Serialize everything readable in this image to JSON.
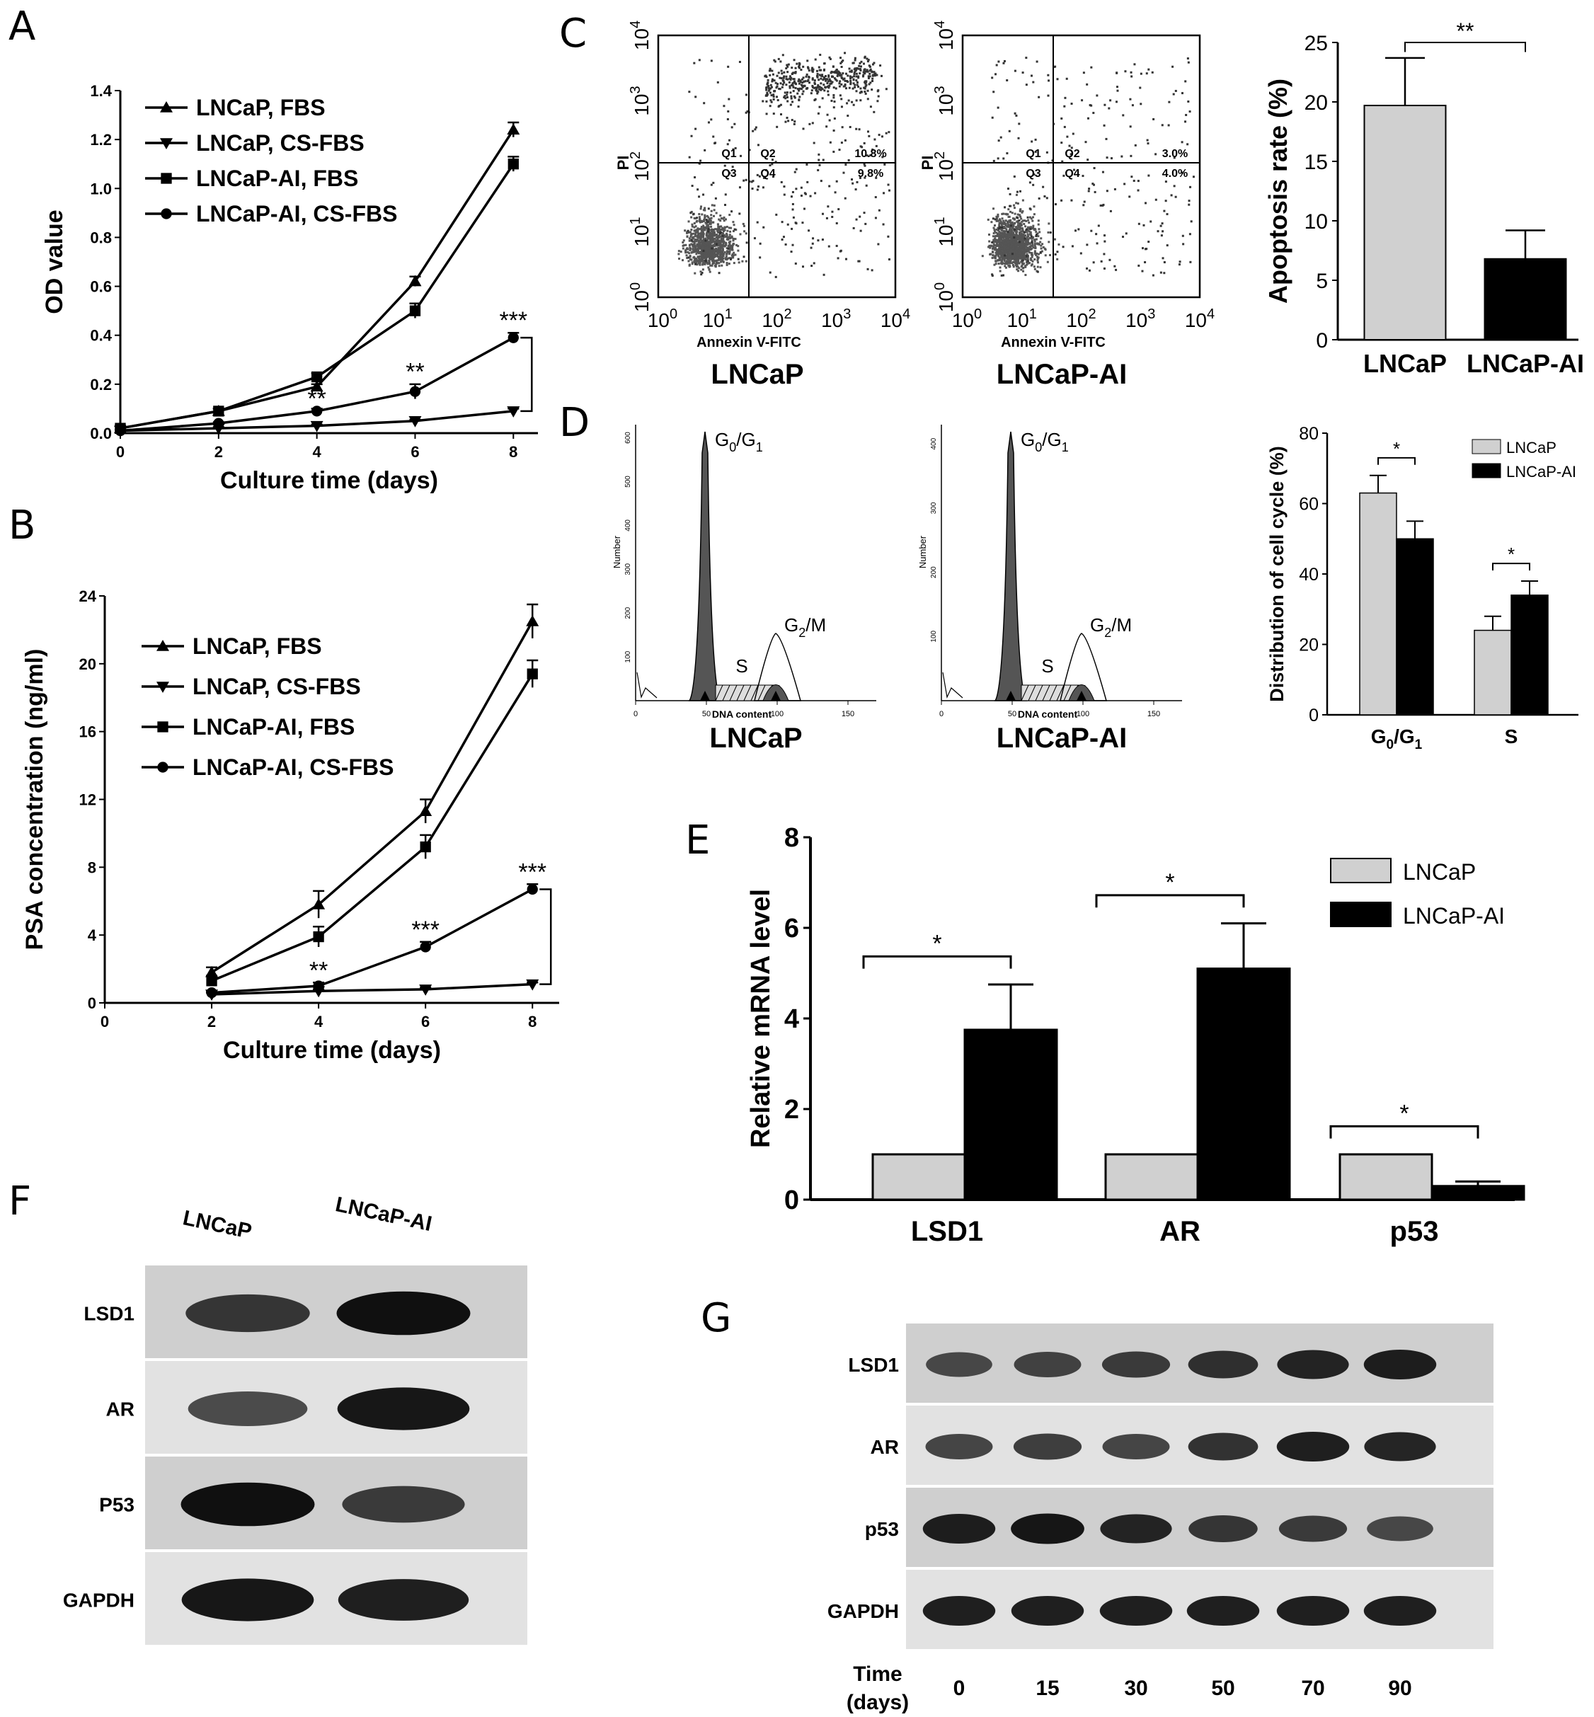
{
  "panel_labels": {
    "A": "A",
    "B": "B",
    "C": "C",
    "D": "D",
    "E": "E",
    "F": "F",
    "G": "G"
  },
  "colors": {
    "light_bar": "#d0d0d0",
    "dark_bar": "#000000",
    "flow_dot": "#555555"
  },
  "chart_data": [
    {
      "id": "A",
      "type": "line",
      "xlabel": "Culture time (days)",
      "ylabel": "OD value",
      "x": [
        0,
        2,
        4,
        6,
        8
      ],
      "xticks": [
        "0",
        "2",
        "4",
        "6",
        "8"
      ],
      "yticks": [
        "0.0",
        "0.2",
        "0.4",
        "0.6",
        "0.8",
        "1.0",
        "1.2",
        "1.4"
      ],
      "xlim": [
        0,
        8.5
      ],
      "ylim": [
        0,
        1.4
      ],
      "series": [
        {
          "name": "LNCaP, FBS",
          "marker": "triangle-up",
          "values": [
            0.02,
            0.09,
            0.19,
            0.62,
            1.24
          ],
          "err": [
            0.01,
            0.01,
            0.01,
            0.02,
            0.03
          ]
        },
        {
          "name": "LNCaP, CS-FBS",
          "marker": "triangle-down",
          "values": [
            0.01,
            0.02,
            0.03,
            0.05,
            0.09
          ],
          "err": [
            0.005,
            0.005,
            0.005,
            0.005,
            0.01
          ]
        },
        {
          "name": "LNCaP-AI, FBS",
          "marker": "square",
          "values": [
            0.02,
            0.09,
            0.23,
            0.5,
            1.1
          ],
          "err": [
            0.01,
            0.01,
            0.015,
            0.03,
            0.03
          ]
        },
        {
          "name": "LNCaP-AI, CS-FBS",
          "marker": "circle",
          "values": [
            0.01,
            0.04,
            0.09,
            0.17,
            0.39
          ],
          "err": [
            0.005,
            0.005,
            0.01,
            0.03,
            0.02
          ]
        }
      ],
      "annotations": [
        {
          "x": 4,
          "y": 0.12,
          "text": "**"
        },
        {
          "x": 6,
          "y": 0.23,
          "text": "**"
        },
        {
          "x": 8,
          "y": 0.44,
          "text": "***"
        }
      ]
    },
    {
      "id": "B",
      "type": "line",
      "xlabel": "Culture time (days)",
      "ylabel": "PSA concentration (ng/ml)",
      "x": [
        2,
        4,
        6,
        8
      ],
      "xticks": [
        "0",
        "2",
        "4",
        "6",
        "8"
      ],
      "yticks": [
        "0",
        "4",
        "8",
        "12",
        "16",
        "20",
        "24"
      ],
      "xlim": [
        0,
        8.5
      ],
      "ylim": [
        0,
        24
      ],
      "series": [
        {
          "name": "LNCaP, FBS",
          "marker": "triangle-up",
          "values": [
            1.8,
            5.8,
            11.3,
            22.5
          ],
          "err": [
            0.3,
            0.8,
            0.7,
            1.0
          ]
        },
        {
          "name": "LNCaP, CS-FBS",
          "marker": "triangle-down",
          "values": [
            0.5,
            0.7,
            0.8,
            1.1
          ],
          "err": [
            0.1,
            0.1,
            0.1,
            0.1
          ]
        },
        {
          "name": "LNCaP-AI, FBS",
          "marker": "square",
          "values": [
            1.3,
            3.9,
            9.2,
            19.4
          ],
          "err": [
            0.3,
            0.6,
            0.7,
            0.8
          ]
        },
        {
          "name": "LNCaP-AI, CS-FBS",
          "marker": "circle",
          "values": [
            0.6,
            1.0,
            3.3,
            6.7
          ],
          "err": [
            0.1,
            0.2,
            0.3,
            0.3
          ]
        }
      ],
      "annotations": [
        {
          "x": 4,
          "y": 1.6,
          "text": "**"
        },
        {
          "x": 6,
          "y": 4.0,
          "text": "***"
        },
        {
          "x": 8,
          "y": 7.4,
          "text": "***"
        }
      ]
    },
    {
      "id": "C-bar",
      "type": "bar",
      "ylabel": "Apoptosis rate (%)",
      "categories": [
        "LNCaP",
        "LNCaP-AI"
      ],
      "values": [
        19.7,
        6.8
      ],
      "err": [
        4.0,
        2.4
      ],
      "yticks": [
        "0",
        "5",
        "10",
        "15",
        "20",
        "25"
      ],
      "ylim": [
        0,
        25
      ],
      "significance": "**"
    },
    {
      "id": "D-bar",
      "type": "bar",
      "ylabel": "Distribution of cell cycle (%)",
      "categories": [
        "G0/G1",
        "S"
      ],
      "category_display": [
        {
          "main": "G",
          "sub1": "0",
          "mid": "/G",
          "sub2": "1"
        },
        {
          "main": "S"
        }
      ],
      "series": [
        {
          "name": "LNCaP",
          "values": [
            63,
            24
          ],
          "err": [
            5,
            4
          ]
        },
        {
          "name": "LNCaP-AI",
          "values": [
            50,
            34
          ],
          "err": [
            5,
            4
          ]
        }
      ],
      "yticks": [
        "0",
        "20",
        "40",
        "60",
        "80"
      ],
      "ylim": [
        0,
        80
      ],
      "significance": [
        "*",
        "*"
      ],
      "legend": "top-right"
    },
    {
      "id": "E",
      "type": "bar",
      "ylabel": "Relative mRNA level",
      "categories": [
        "LSD1",
        "AR",
        "p53"
      ],
      "series": [
        {
          "name": "LNCaP",
          "values": [
            1.0,
            1.0,
            1.0
          ],
          "err": [
            0,
            0,
            0
          ]
        },
        {
          "name": "LNCaP-AI",
          "values": [
            3.75,
            5.1,
            0.3
          ],
          "err": [
            1.0,
            1.0,
            0.1
          ]
        }
      ],
      "yticks": [
        "0",
        "2",
        "4",
        "6",
        "8"
      ],
      "ylim": [
        0,
        8
      ],
      "significance": [
        "*",
        "*",
        "*"
      ],
      "legend": "top-right"
    }
  ],
  "flow_c": {
    "plots": [
      {
        "title": "LNCaP",
        "q1": "Q1",
        "q2": "Q2",
        "q3": "Q3",
        "q4": "Q4",
        "q2_val": "10.8%",
        "q4_val": "9.8%"
      },
      {
        "title": "LNCaP-AI",
        "q1": "Q1",
        "q2": "Q2",
        "q3": "Q3",
        "q4": "Q4",
        "q2_val": "3.0%",
        "q4_val": "4.0%"
      }
    ],
    "xlabel": "Annexin V-FITC",
    "ylabel": "PI",
    "ticks": [
      "0",
      "1",
      "2",
      "3",
      "4"
    ],
    "tick_base": "10"
  },
  "cellcycle_d": {
    "plots": [
      {
        "title": "LNCaP"
      },
      {
        "title": "LNCaP-AI"
      }
    ],
    "ylabel": "Number",
    "xlabel": "DNA content",
    "peak1_label": "G",
    "peak1_sub1": "0",
    "peak1_mid": "/G",
    "peak1_sub2": "1",
    "s_label": "S",
    "peak2_label": "G",
    "peak2_sub": "2",
    "peak2_tail": "/M",
    "xticks": [
      "0",
      "50",
      "100",
      "150"
    ],
    "yticks_left": [
      "100",
      "200",
      "300",
      "400",
      "500",
      "600"
    ],
    "yticks_right": [
      "100",
      "200",
      "300",
      "400"
    ]
  },
  "western_f": {
    "columns": [
      "LNCaP",
      "LNCaP-AI"
    ],
    "rows": [
      "LSD1",
      "AR",
      "P53",
      "GAPDH"
    ],
    "intensity": [
      [
        0.7,
        1.0
      ],
      [
        0.55,
        0.95
      ],
      [
        1.0,
        0.65
      ],
      [
        0.95,
        0.9
      ]
    ]
  },
  "western_g": {
    "rows": [
      "LSD1",
      "AR",
      "p53",
      "GAPDH"
    ],
    "time_label_1": "Time",
    "time_label_2": "(days)",
    "times": [
      "0",
      "15",
      "30",
      "50",
      "70",
      "90"
    ],
    "intensity": [
      [
        0.55,
        0.6,
        0.65,
        0.75,
        0.85,
        0.9
      ],
      [
        0.6,
        0.65,
        0.6,
        0.75,
        0.9,
        0.85
      ],
      [
        0.9,
        0.95,
        0.85,
        0.7,
        0.65,
        0.55
      ],
      [
        0.9,
        0.9,
        0.9,
        0.9,
        0.9,
        0.9
      ]
    ]
  }
}
